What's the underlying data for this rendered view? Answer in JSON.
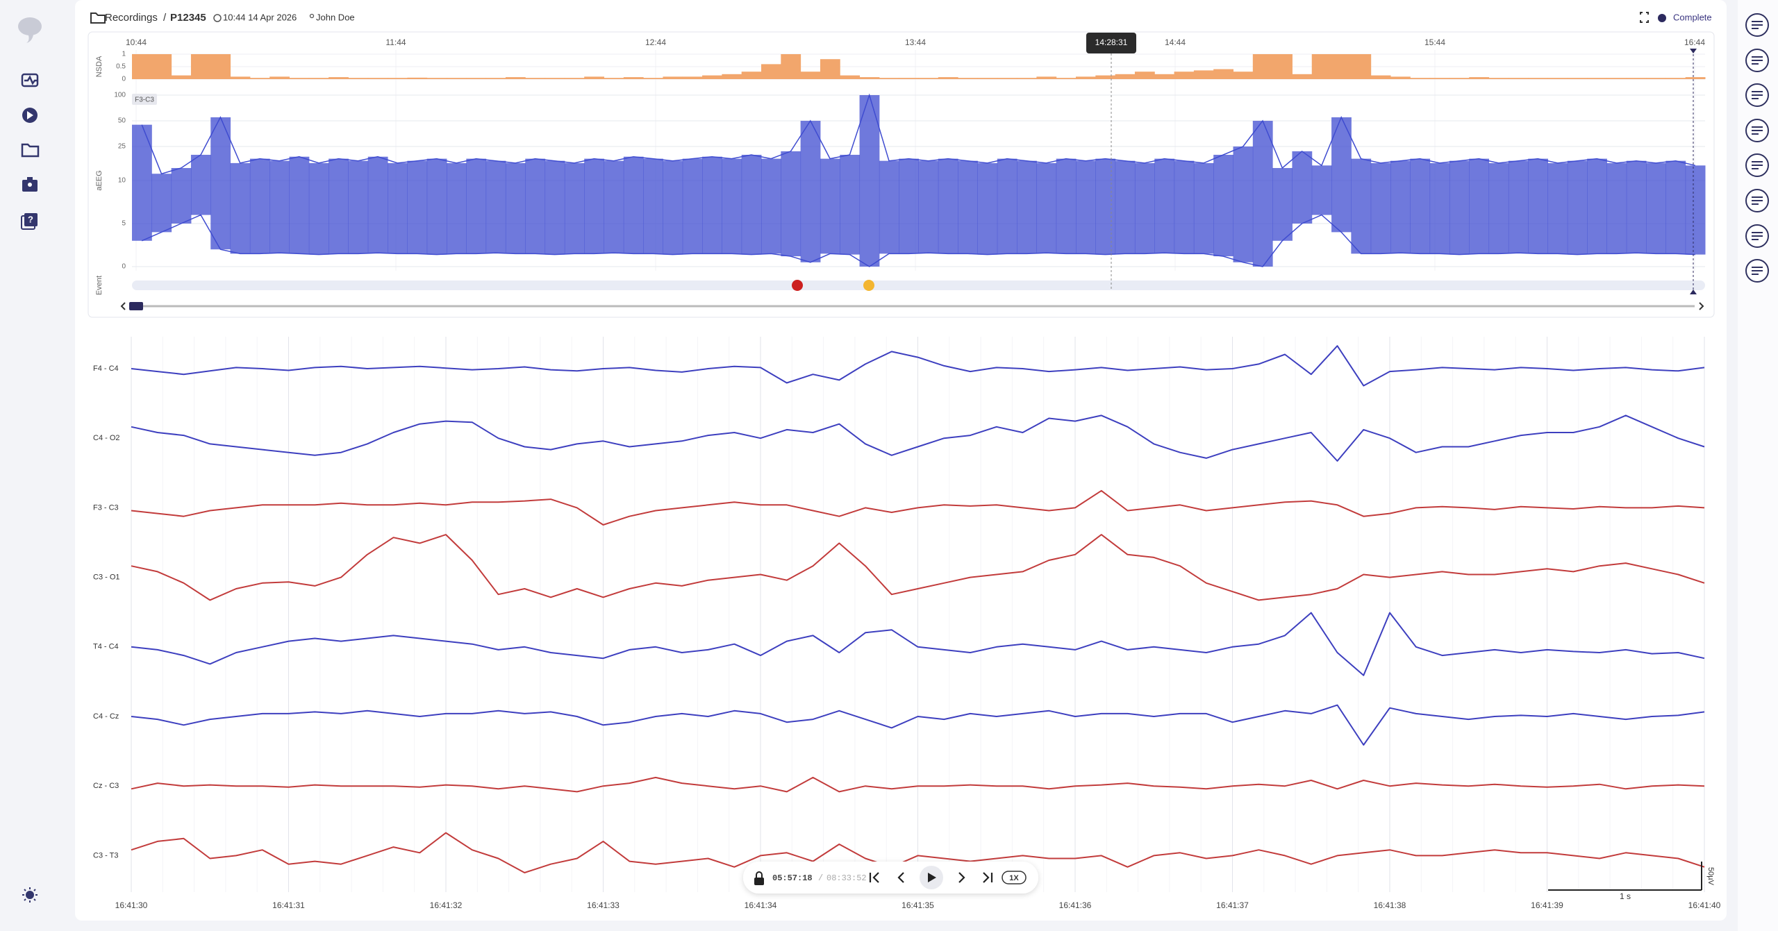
{
  "header": {
    "breadcrumb": "Recordings",
    "separator": "/",
    "patient_id": "P12345",
    "datetime": "10:44 14 Apr 2026",
    "user": "John Doe",
    "status": "Complete"
  },
  "trend": {
    "time_labels": [
      "10:44",
      "11:44",
      "12:44",
      "13:44",
      "14:44",
      "15:44",
      "16:44"
    ],
    "cursor_time": "14:28:31",
    "nsda": {
      "label": "NSDA",
      "color": "#f2a66c",
      "ticks": [
        1,
        0.5,
        0
      ],
      "values": [
        1,
        1,
        0.15,
        1,
        1,
        0.1,
        0.05,
        0.1,
        0.05,
        0.05,
        0.08,
        0.05,
        0.05,
        0.05,
        0.06,
        0.05,
        0.05,
        0.05,
        0.05,
        0.08,
        0.05,
        0.05,
        0.05,
        0.1,
        0.05,
        0.08,
        0.05,
        0.1,
        0.1,
        0.15,
        0.2,
        0.3,
        0.6,
        1,
        0.3,
        0.8,
        0.15,
        0.08,
        0.05,
        0.05,
        0.05,
        0.08,
        0.05,
        0.05,
        0.05,
        0.05,
        0.1,
        0.05,
        0.1,
        0.15,
        0.2,
        0.3,
        0.2,
        0.3,
        0.35,
        0.4,
        0.3,
        1,
        1,
        0.2,
        1,
        1,
        1,
        0.15,
        0.1,
        0.05,
        0.05,
        0.05,
        0.08,
        0.05,
        0.05,
        0.05,
        0.05,
        0.05,
        0.05,
        0.05,
        0.05,
        0.05,
        0.05,
        0.08
      ]
    },
    "aeeg": {
      "label": "aEEG",
      "channel": "F3-C3",
      "color": "#3f4cd0",
      "ticks": [
        100,
        50,
        25,
        10,
        5,
        0
      ],
      "upper": [
        45,
        12,
        14,
        20,
        55,
        16,
        18,
        17,
        19,
        16,
        18,
        17,
        19,
        16,
        17,
        18,
        16,
        18,
        17,
        16,
        18,
        17,
        16,
        18,
        17,
        19,
        18,
        17,
        18,
        19,
        18,
        20,
        18,
        22,
        50,
        18,
        20,
        100,
        17,
        18,
        17,
        18,
        17,
        16,
        18,
        17,
        16,
        18,
        17,
        18,
        17,
        16,
        18,
        17,
        16,
        20,
        25,
        50,
        14,
        22,
        15,
        55,
        18,
        16,
        17,
        18,
        16,
        17,
        18,
        16,
        17,
        18,
        16,
        17,
        18,
        16,
        17,
        16,
        17,
        15
      ],
      "lower": [
        3,
        4,
        5,
        6,
        2,
        1.5,
        1.5,
        1.6,
        1.5,
        1.4,
        1.5,
        1.5,
        1.6,
        1.5,
        1.5,
        1.4,
        1.5,
        1.5,
        1.6,
        1.5,
        1.5,
        1.4,
        1.5,
        1.5,
        1.6,
        1.5,
        1.5,
        1.4,
        1.5,
        1.5,
        1.5,
        1.4,
        1.5,
        1.2,
        0.5,
        1.5,
        1.4,
        0,
        1.5,
        1.5,
        1.6,
        1.5,
        1.5,
        1.4,
        1.5,
        1.5,
        1.6,
        1.5,
        1.5,
        1.4,
        1.5,
        1.5,
        1.6,
        1.5,
        1.5,
        1.2,
        0.5,
        0,
        3,
        5,
        6,
        4,
        1.5,
        1.5,
        1.6,
        1.5,
        1.5,
        1.4,
        1.5,
        1.5,
        1.6,
        1.5,
        1.5,
        1.4,
        1.5,
        1.5,
        1.6,
        1.5,
        1.5,
        1.4
      ]
    },
    "event": {
      "label": "Event"
    }
  },
  "eeg": {
    "channels": [
      {
        "name": "F4 - C4",
        "color": "#3d3fbf",
        "values": [
          0,
          -5,
          -10,
          -4,
          2,
          0,
          -3,
          2,
          4,
          0,
          2,
          4,
          1,
          -2,
          0,
          3,
          -2,
          -4,
          0,
          2,
          -3,
          -6,
          0,
          4,
          2,
          -25,
          -10,
          -20,
          8,
          30,
          20,
          5,
          -5,
          2,
          0,
          -5,
          -2,
          2,
          -3,
          0,
          3,
          -2,
          0,
          8,
          25,
          -10,
          40,
          -30,
          -5,
          -2,
          2,
          0,
          -2,
          2,
          0,
          -3,
          0,
          2,
          -2,
          -4,
          2
        ]
      },
      {
        "name": "C4 - O2",
        "color": "#3d3fbf",
        "values": [
          20,
          10,
          5,
          -10,
          -15,
          -20,
          -25,
          -30,
          -25,
          -10,
          10,
          25,
          30,
          28,
          0,
          -15,
          -20,
          -10,
          -5,
          -15,
          -10,
          -5,
          5,
          10,
          0,
          15,
          10,
          25,
          -10,
          -30,
          -15,
          0,
          5,
          20,
          10,
          35,
          30,
          40,
          20,
          -10,
          -25,
          -35,
          -20,
          -10,
          0,
          10,
          -40,
          15,
          0,
          -25,
          -15,
          -15,
          -5,
          5,
          10,
          10,
          20,
          40,
          20,
          0,
          -15
        ]
      },
      {
        "name": "F3 - C3",
        "color": "#c23b3b",
        "values": [
          -5,
          -10,
          -15,
          -5,
          0,
          5,
          5,
          5,
          8,
          5,
          5,
          8,
          5,
          10,
          10,
          12,
          15,
          0,
          -30,
          -15,
          -5,
          0,
          5,
          10,
          5,
          5,
          -5,
          -15,
          0,
          -8,
          0,
          5,
          3,
          5,
          0,
          -5,
          0,
          30,
          -5,
          0,
          5,
          -5,
          0,
          5,
          10,
          12,
          5,
          -15,
          -10,
          0,
          2,
          0,
          -3,
          2,
          0,
          -2,
          2,
          0,
          0,
          3,
          0
        ]
      },
      {
        "name": "C3 - O1",
        "color": "#c23b3b",
        "values": [
          20,
          10,
          -10,
          -40,
          -20,
          -10,
          -8,
          -15,
          0,
          40,
          70,
          60,
          75,
          30,
          -30,
          -20,
          -35,
          -20,
          -35,
          -20,
          -10,
          -15,
          -5,
          0,
          5,
          -5,
          20,
          60,
          20,
          -30,
          -20,
          -10,
          0,
          5,
          10,
          30,
          40,
          75,
          40,
          35,
          20,
          -10,
          -25,
          -40,
          -35,
          -30,
          -20,
          5,
          0,
          5,
          10,
          5,
          5,
          10,
          15,
          10,
          20,
          25,
          15,
          5,
          -10
        ]
      },
      {
        "name": "T4 - C4",
        "color": "#3d3fbf",
        "values": [
          0,
          -5,
          -15,
          -30,
          -10,
          0,
          10,
          15,
          10,
          15,
          20,
          15,
          10,
          5,
          -5,
          0,
          -10,
          -15,
          -20,
          -5,
          0,
          -10,
          -5,
          5,
          -15,
          10,
          20,
          -10,
          25,
          30,
          0,
          -5,
          -10,
          0,
          5,
          0,
          -5,
          10,
          -5,
          0,
          -5,
          -10,
          0,
          5,
          20,
          60,
          -10,
          -50,
          60,
          0,
          -15,
          -10,
          -5,
          -10,
          -5,
          -8,
          -10,
          -5,
          -12,
          -10,
          -20
        ]
      },
      {
        "name": "C4 - Cz",
        "color": "#3d3fbf",
        "values": [
          0,
          -5,
          -15,
          -5,
          0,
          5,
          5,
          8,
          5,
          10,
          5,
          0,
          5,
          5,
          10,
          5,
          8,
          0,
          -15,
          -10,
          0,
          5,
          0,
          10,
          5,
          -10,
          -5,
          10,
          -5,
          -20,
          0,
          -5,
          5,
          0,
          5,
          10,
          0,
          5,
          5,
          0,
          5,
          5,
          -10,
          0,
          10,
          5,
          20,
          -50,
          15,
          5,
          0,
          -5,
          0,
          2,
          0,
          5,
          0,
          -5,
          0,
          2,
          8
        ]
      },
      {
        "name": "Cz - C3",
        "color": "#c23b3b",
        "values": [
          -5,
          5,
          0,
          2,
          0,
          0,
          -2,
          2,
          0,
          0,
          0,
          -2,
          2,
          0,
          -5,
          0,
          -5,
          -10,
          0,
          5,
          15,
          5,
          0,
          -5,
          0,
          -10,
          15,
          -10,
          0,
          -5,
          0,
          0,
          2,
          0,
          0,
          -5,
          0,
          2,
          5,
          0,
          -2,
          -5,
          0,
          3,
          0,
          10,
          -5,
          10,
          0,
          5,
          2,
          0,
          3,
          0,
          -2,
          0,
          3,
          -5,
          0,
          2,
          0
        ]
      },
      {
        "name": "C3 - T3",
        "color": "#c23b3b",
        "values": [
          10,
          25,
          30,
          -5,
          0,
          10,
          -15,
          -10,
          -15,
          0,
          15,
          5,
          40,
          10,
          -5,
          -30,
          -15,
          -5,
          25,
          -10,
          -15,
          -10,
          -5,
          -20,
          0,
          5,
          -10,
          20,
          -5,
          -20,
          0,
          -5,
          -10,
          -5,
          0,
          -5,
          -5,
          0,
          -20,
          0,
          5,
          -5,
          0,
          10,
          0,
          -15,
          0,
          5,
          10,
          0,
          0,
          5,
          10,
          5,
          5,
          0,
          -5,
          5,
          0,
          -5,
          -20
        ]
      }
    ],
    "time_labels": [
      "16:41:30",
      "16:41:31",
      "16:41:32",
      "16:41:33",
      "16:41:34",
      "16:41:35",
      "16:41:36",
      "16:41:37",
      "16:41:38",
      "16:41:39",
      "16:41:40"
    ],
    "scale": {
      "time": "1 s",
      "amplitude": "50µV"
    }
  },
  "player": {
    "position": "05:57:18",
    "separator": "/",
    "duration": "08:33:52",
    "speed": "1X"
  }
}
